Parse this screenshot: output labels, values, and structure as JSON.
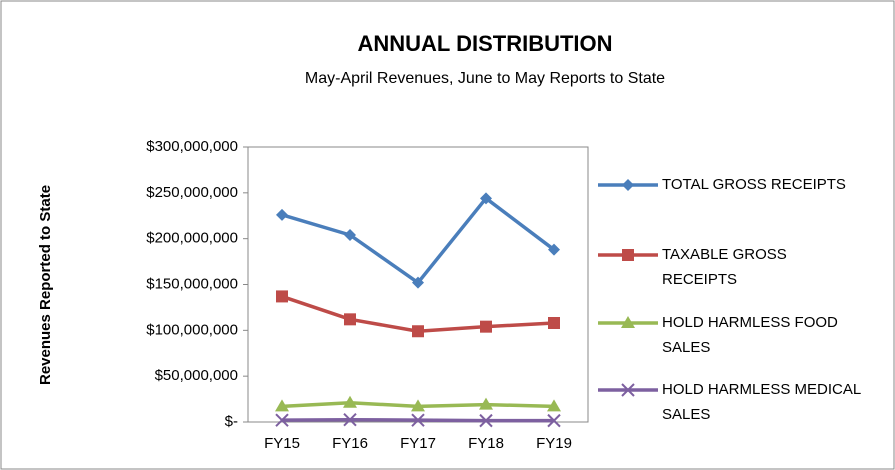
{
  "chart_data": {
    "type": "line",
    "title": "ANNUAL DISTRIBUTION",
    "subtitle": "May-April Revenues, June to May Reports to State",
    "y_label": "Revenues Reported to State",
    "categories": [
      "FY15",
      "FY16",
      "FY17",
      "FY18",
      "FY19"
    ],
    "series": [
      {
        "name": "TOTAL GROSS RECEIPTS",
        "color": "#4a7ebb",
        "marker": "diamond",
        "values": [
          226000000,
          204000000,
          152000000,
          244000000,
          188000000
        ]
      },
      {
        "name": "TAXABLE GROSS RECEIPTS",
        "color": "#be4b48",
        "marker": "square",
        "values": [
          137000000,
          112000000,
          99000000,
          104000000,
          108000000
        ]
      },
      {
        "name": "HOLD HARMLESS FOOD SALES",
        "color": "#98b954",
        "marker": "triangle",
        "values": [
          17000000,
          21000000,
          17000000,
          19000000,
          17000000
        ]
      },
      {
        "name": "HOLD HARMLESS MEDICAL SALES",
        "color": "#7d60a0",
        "marker": "x",
        "values": [
          2000000,
          2500000,
          2000000,
          1500000,
          1500000
        ]
      }
    ],
    "ylim": [
      0,
      300000000
    ],
    "yticks": [
      {
        "value": 0,
        "label": "$-"
      },
      {
        "value": 50000000,
        "label": "$50,000,000"
      },
      {
        "value": 100000000,
        "label": "$100,000,000"
      },
      {
        "value": 150000000,
        "label": "$150,000,000"
      },
      {
        "value": 200000000,
        "label": "$200,000,000"
      },
      {
        "value": 250000000,
        "label": "$250,000,000"
      },
      {
        "value": 300000000,
        "label": "$300,000,000"
      }
    ],
    "grid": false,
    "legend": "right"
  }
}
